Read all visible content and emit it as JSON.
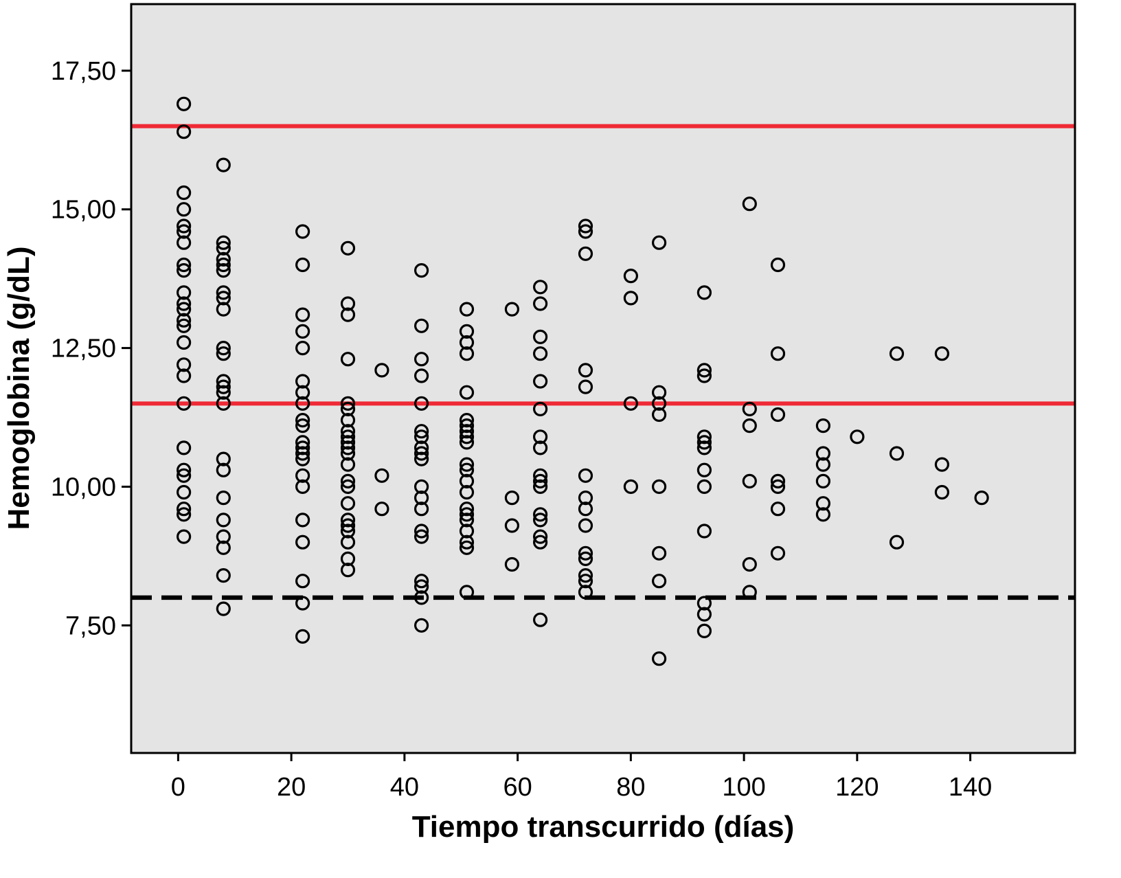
{
  "chart_data": {
    "type": "scatter",
    "title": "",
    "xlabel": "Tiempo transcurrido (días)",
    "ylabel": "Hemoglobina (g/dL)",
    "xlim": [
      -8.3,
      158.5
    ],
    "ylim": [
      5.2,
      18.7
    ],
    "xticks": [
      0,
      20,
      40,
      60,
      80,
      100,
      120,
      140
    ],
    "xtick_labels": [
      "0",
      "20",
      "40",
      "60",
      "80",
      "100",
      "120",
      "140"
    ],
    "yticks": [
      7.5,
      10.0,
      12.5,
      15.0,
      17.5
    ],
    "ytick_labels": [
      "7,50",
      "10,00",
      "12,50",
      "15,00",
      "17,50"
    ],
    "background_color": "#e4e4e4",
    "grid": false,
    "reference_lines": [
      {
        "y": 16.5,
        "color": "#ef2a36",
        "style": "solid"
      },
      {
        "y": 11.5,
        "color": "#ef2a36",
        "style": "solid"
      },
      {
        "y": 8.0,
        "color": "#000000",
        "style": "dashed"
      }
    ],
    "series": [
      {
        "marker": "open-circle",
        "color": "#000000",
        "points": [
          [
            1,
            16.9
          ],
          [
            1,
            16.4
          ],
          [
            1,
            15.3
          ],
          [
            1,
            15.0
          ],
          [
            1,
            14.7
          ],
          [
            1,
            14.6
          ],
          [
            1,
            14.4
          ],
          [
            1,
            14.0
          ],
          [
            1,
            13.9
          ],
          [
            1,
            13.5
          ],
          [
            1,
            13.3
          ],
          [
            1,
            13.2
          ],
          [
            1,
            13.0
          ],
          [
            1,
            12.9
          ],
          [
            1,
            12.6
          ],
          [
            1,
            12.2
          ],
          [
            1,
            12.0
          ],
          [
            1,
            11.5
          ],
          [
            1,
            10.7
          ],
          [
            1,
            10.3
          ],
          [
            1,
            10.2
          ],
          [
            1,
            9.9
          ],
          [
            1,
            9.6
          ],
          [
            1,
            9.5
          ],
          [
            1,
            9.1
          ],
          [
            8,
            15.8
          ],
          [
            8,
            14.4
          ],
          [
            8,
            14.3
          ],
          [
            8,
            14.1
          ],
          [
            8,
            14.0
          ],
          [
            8,
            13.9
          ],
          [
            8,
            13.5
          ],
          [
            8,
            13.4
          ],
          [
            8,
            13.2
          ],
          [
            8,
            12.5
          ],
          [
            8,
            12.4
          ],
          [
            8,
            11.9
          ],
          [
            8,
            11.8
          ],
          [
            8,
            11.7
          ],
          [
            8,
            11.5
          ],
          [
            8,
            10.5
          ],
          [
            8,
            10.3
          ],
          [
            8,
            9.8
          ],
          [
            8,
            9.4
          ],
          [
            8,
            9.1
          ],
          [
            8,
            8.9
          ],
          [
            8,
            8.4
          ],
          [
            8,
            7.8
          ],
          [
            22,
            14.6
          ],
          [
            22,
            14.0
          ],
          [
            22,
            13.1
          ],
          [
            22,
            12.8
          ],
          [
            22,
            12.5
          ],
          [
            22,
            11.9
          ],
          [
            22,
            11.7
          ],
          [
            22,
            11.5
          ],
          [
            22,
            11.2
          ],
          [
            22,
            11.1
          ],
          [
            22,
            10.8
          ],
          [
            22,
            10.7
          ],
          [
            22,
            10.6
          ],
          [
            22,
            10.5
          ],
          [
            22,
            10.2
          ],
          [
            22,
            10.0
          ],
          [
            22,
            9.4
          ],
          [
            22,
            9.0
          ],
          [
            22,
            8.3
          ],
          [
            22,
            7.9
          ],
          [
            22,
            7.3
          ],
          [
            30,
            14.3
          ],
          [
            30,
            13.3
          ],
          [
            30,
            13.1
          ],
          [
            30,
            12.3
          ],
          [
            30,
            11.5
          ],
          [
            30,
            11.4
          ],
          [
            30,
            11.2
          ],
          [
            30,
            11.0
          ],
          [
            30,
            10.9
          ],
          [
            30,
            10.8
          ],
          [
            30,
            10.7
          ],
          [
            30,
            10.6
          ],
          [
            30,
            10.4
          ],
          [
            30,
            10.1
          ],
          [
            30,
            10.0
          ],
          [
            30,
            9.7
          ],
          [
            30,
            9.4
          ],
          [
            30,
            9.3
          ],
          [
            30,
            9.2
          ],
          [
            30,
            9.0
          ],
          [
            30,
            8.7
          ],
          [
            30,
            8.5
          ],
          [
            36,
            12.1
          ],
          [
            36,
            10.2
          ],
          [
            36,
            9.6
          ],
          [
            43,
            13.9
          ],
          [
            43,
            12.9
          ],
          [
            43,
            12.3
          ],
          [
            43,
            12.0
          ],
          [
            43,
            11.5
          ],
          [
            43,
            11.0
          ],
          [
            43,
            10.9
          ],
          [
            43,
            10.7
          ],
          [
            43,
            10.6
          ],
          [
            43,
            10.5
          ],
          [
            43,
            10.0
          ],
          [
            43,
            9.8
          ],
          [
            43,
            9.6
          ],
          [
            43,
            9.2
          ],
          [
            43,
            9.1
          ],
          [
            43,
            8.3
          ],
          [
            43,
            8.2
          ],
          [
            43,
            8.0
          ],
          [
            43,
            7.5
          ],
          [
            51,
            13.2
          ],
          [
            51,
            12.8
          ],
          [
            51,
            12.6
          ],
          [
            51,
            12.4
          ],
          [
            51,
            11.7
          ],
          [
            51,
            11.2
          ],
          [
            51,
            11.1
          ],
          [
            51,
            11.0
          ],
          [
            51,
            10.9
          ],
          [
            51,
            10.8
          ],
          [
            51,
            10.4
          ],
          [
            51,
            10.3
          ],
          [
            51,
            10.1
          ],
          [
            51,
            9.9
          ],
          [
            51,
            9.6
          ],
          [
            51,
            9.5
          ],
          [
            51,
            9.4
          ],
          [
            51,
            9.2
          ],
          [
            51,
            9.0
          ],
          [
            51,
            8.9
          ],
          [
            51,
            8.1
          ],
          [
            59,
            13.2
          ],
          [
            59,
            9.8
          ],
          [
            59,
            9.3
          ],
          [
            59,
            8.6
          ],
          [
            64,
            13.6
          ],
          [
            64,
            13.3
          ],
          [
            64,
            12.7
          ],
          [
            64,
            12.4
          ],
          [
            64,
            11.9
          ],
          [
            64,
            11.4
          ],
          [
            64,
            10.9
          ],
          [
            64,
            10.7
          ],
          [
            64,
            10.2
          ],
          [
            64,
            10.1
          ],
          [
            64,
            10.0
          ],
          [
            64,
            9.5
          ],
          [
            64,
            9.4
          ],
          [
            64,
            9.1
          ],
          [
            64,
            9.0
          ],
          [
            64,
            7.6
          ],
          [
            72,
            14.7
          ],
          [
            72,
            14.6
          ],
          [
            72,
            14.2
          ],
          [
            72,
            12.1
          ],
          [
            72,
            11.8
          ],
          [
            72,
            10.2
          ],
          [
            72,
            9.8
          ],
          [
            72,
            9.6
          ],
          [
            72,
            9.3
          ],
          [
            72,
            8.8
          ],
          [
            72,
            8.7
          ],
          [
            72,
            8.4
          ],
          [
            72,
            8.3
          ],
          [
            72,
            8.1
          ],
          [
            80,
            13.8
          ],
          [
            80,
            13.4
          ],
          [
            80,
            11.5
          ],
          [
            80,
            10.0
          ],
          [
            85,
            14.4
          ],
          [
            85,
            11.7
          ],
          [
            85,
            11.5
          ],
          [
            85,
            11.3
          ],
          [
            85,
            10.0
          ],
          [
            85,
            8.8
          ],
          [
            85,
            8.3
          ],
          [
            85,
            6.9
          ],
          [
            93,
            13.5
          ],
          [
            93,
            12.1
          ],
          [
            93,
            12.0
          ],
          [
            93,
            10.9
          ],
          [
            93,
            10.8
          ],
          [
            93,
            10.7
          ],
          [
            93,
            10.3
          ],
          [
            93,
            10.0
          ],
          [
            93,
            9.2
          ],
          [
            93,
            7.9
          ],
          [
            93,
            7.7
          ],
          [
            93,
            7.4
          ],
          [
            101,
            15.1
          ],
          [
            101,
            11.4
          ],
          [
            101,
            11.1
          ],
          [
            101,
            10.1
          ],
          [
            101,
            8.6
          ],
          [
            101,
            8.1
          ],
          [
            106,
            14.0
          ],
          [
            106,
            12.4
          ],
          [
            106,
            11.3
          ],
          [
            106,
            10.1
          ],
          [
            106,
            10.0
          ],
          [
            106,
            9.6
          ],
          [
            106,
            8.8
          ],
          [
            114,
            11.1
          ],
          [
            114,
            10.6
          ],
          [
            114,
            10.4
          ],
          [
            114,
            10.1
          ],
          [
            114,
            9.7
          ],
          [
            114,
            9.5
          ],
          [
            120,
            10.9
          ],
          [
            127,
            12.4
          ],
          [
            127,
            10.6
          ],
          [
            127,
            9.0
          ],
          [
            135,
            12.4
          ],
          [
            135,
            10.4
          ],
          [
            135,
            9.9
          ],
          [
            142,
            9.8
          ]
        ]
      }
    ]
  }
}
